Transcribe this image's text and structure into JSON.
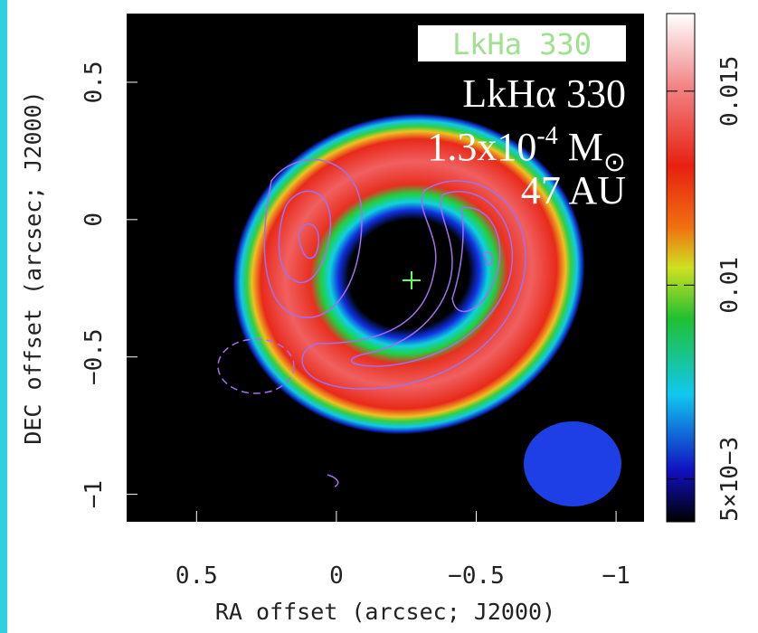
{
  "chart_data": {
    "type": "image",
    "legend_box": "LkHa 330",
    "annotations": [
      "LkHα 330",
      "1.3x10",
      "-4",
      "M",
      "⊙",
      "47 AU"
    ],
    "xlabel": "RA offset (arcsec; J2000)",
    "ylabel": "DEC offset (arcsec; J2000)",
    "xlim": [
      0.75,
      -1.1
    ],
    "ylim": [
      -1.1,
      0.75
    ],
    "xticks": [
      0.5,
      0,
      {
        "value": -0.5,
        "label": "−0.5"
      },
      {
        "value": -1,
        "label": "−1"
      }
    ],
    "yticks": [
      0.5,
      0,
      {
        "value": -0.5,
        "label": "−0.5"
      },
      {
        "value": -1,
        "label": "−1"
      }
    ],
    "clim": [
      0.0039,
      0.017
    ],
    "cticks": [
      {
        "value": 0.005,
        "label": "5×10−3"
      },
      0.01,
      0.015
    ]
  }
}
